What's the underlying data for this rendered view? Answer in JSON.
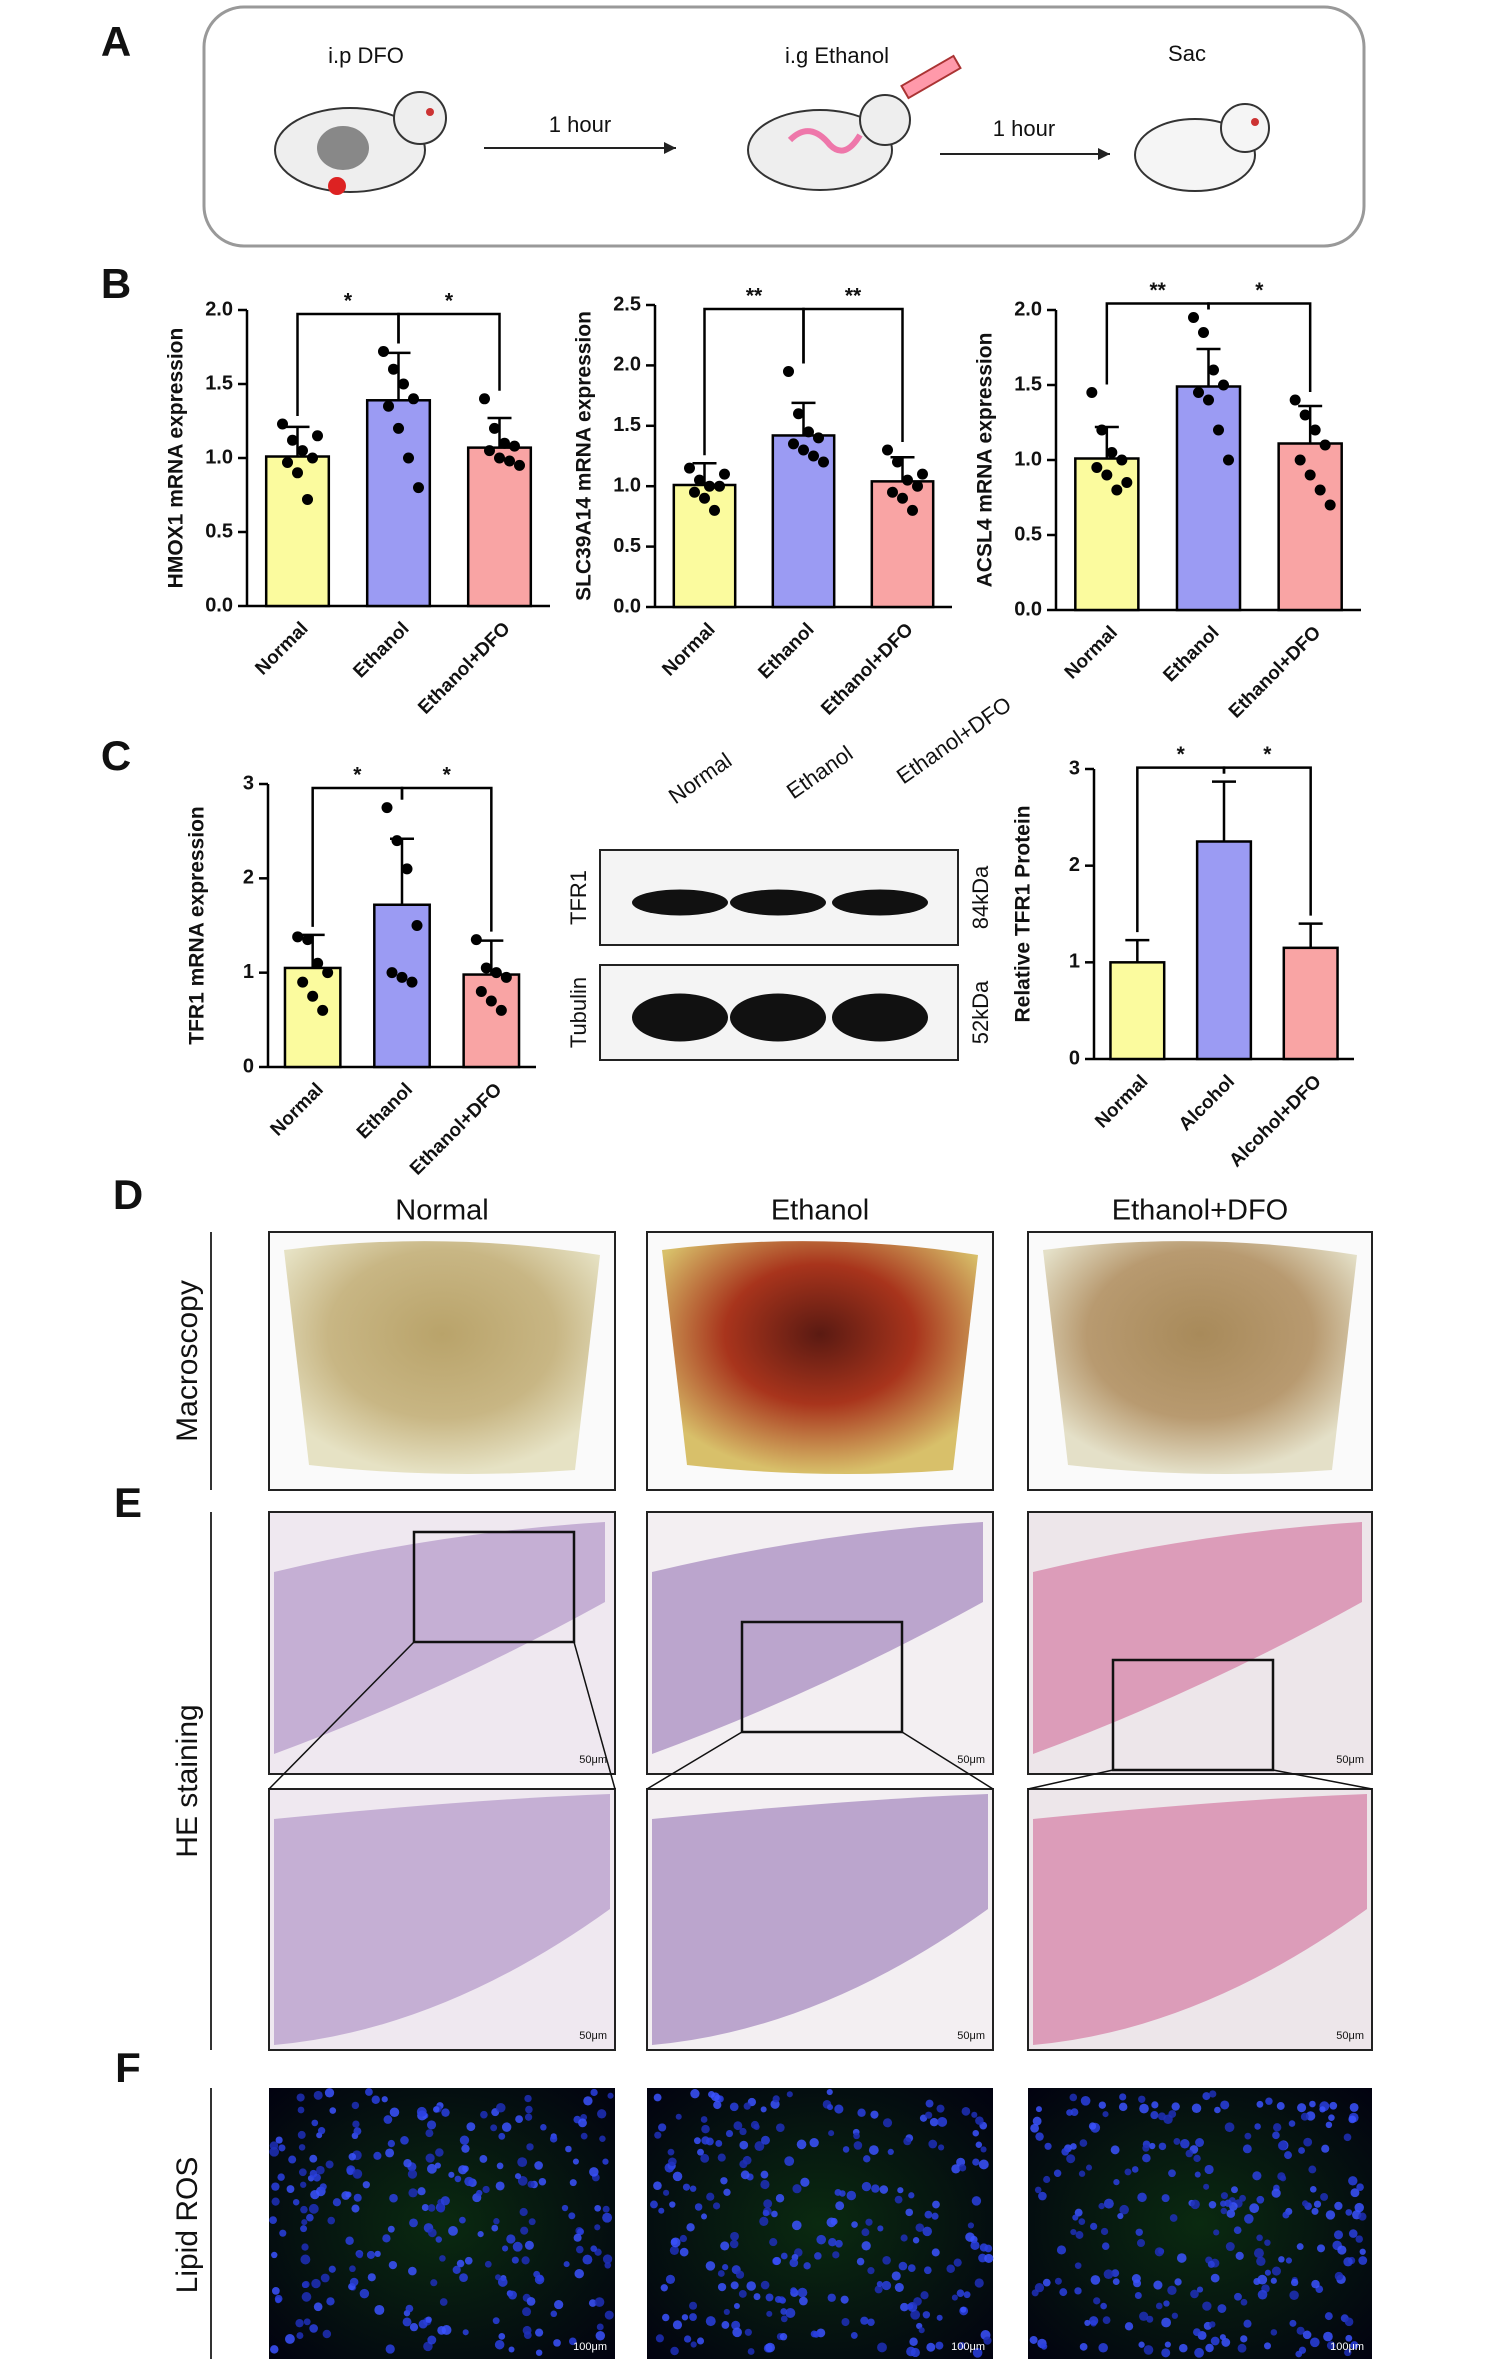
{
  "panel_labels": [
    "A",
    "B",
    "C",
    "D",
    "E",
    "F"
  ],
  "schematic": {
    "steps": [
      "i.p DFO",
      "i.g  Ethanol",
      "Sac"
    ],
    "intervals": [
      "1 hour",
      "1 hour"
    ]
  },
  "blot": {
    "lanes": [
      "Normal",
      "Ethanol",
      "Ethanol+DFO"
    ],
    "bands": [
      {
        "name": "TFR1",
        "size": "84kDa"
      },
      {
        "name": "Tubulin",
        "size": "52kDa"
      }
    ]
  },
  "images": {
    "columns": [
      "Normal",
      "Ethanol",
      "Ethanol+DFO"
    ],
    "rows": [
      "Macroscopy",
      "HE staining",
      "Lipid ROS"
    ],
    "scale_bars": [
      "50μm",
      "100μm"
    ]
  },
  "chart_data": [
    {
      "type": "bar",
      "ylabel": "HMOX1 mRNA expression",
      "categories": [
        "Normal",
        "Ethanol",
        "Ethanol+DFO"
      ],
      "values": [
        1.01,
        1.39,
        1.07
      ],
      "errors": [
        0.2,
        0.32,
        0.2
      ],
      "points": [
        [
          1.23,
          1.12,
          1.05,
          1.0,
          0.97,
          0.9,
          0.72,
          1.15
        ],
        [
          1.72,
          1.6,
          1.5,
          1.4,
          1.35,
          1.2,
          1.0,
          0.8
        ],
        [
          1.4,
          1.2,
          1.1,
          1.08,
          1.05,
          1.0,
          0.98,
          0.95
        ]
      ],
      "colors": [
        "#fbfb9e",
        "#9b9bf3",
        "#f9a4a4"
      ],
      "significance": [
        "*",
        "*"
      ],
      "ylim": [
        0,
        2
      ],
      "yticks": [
        {
          "value": 0,
          "label": "0.0"
        },
        0.5,
        {
          "value": 1,
          "label": "1.0"
        },
        1.5,
        {
          "value": 2,
          "label": "2.0"
        }
      ]
    },
    {
      "type": "bar",
      "ylabel": "SLC39A14 mRNA expression",
      "categories": [
        "Normal",
        "Ethanol",
        "Ethanol+DFO"
      ],
      "values": [
        1.01,
        1.42,
        1.04
      ],
      "errors": [
        0.18,
        0.27,
        0.2
      ],
      "points": [
        [
          1.15,
          1.05,
          1.0,
          1.0,
          0.95,
          0.9,
          0.8,
          1.1
        ],
        [
          1.95,
          1.6,
          1.45,
          1.4,
          1.35,
          1.3,
          1.25,
          1.2
        ],
        [
          1.3,
          1.2,
          1.05,
          1.0,
          0.95,
          0.9,
          0.8,
          1.1
        ]
      ],
      "colors": [
        "#fbfb9e",
        "#9b9bf3",
        "#f9a4a4"
      ],
      "significance": [
        "**",
        "**"
      ],
      "ylim": [
        0,
        2.5
      ],
      "yticks": [
        {
          "value": 0,
          "label": "0.0"
        },
        0.5,
        {
          "value": 1,
          "label": "1.0"
        },
        1.5,
        {
          "value": 2,
          "label": "2.0"
        },
        2.5
      ]
    },
    {
      "type": "bar",
      "ylabel": "ACSL4 mRNA expression",
      "categories": [
        "Normal",
        "Ethanol",
        "Ethanol+DFO"
      ],
      "values": [
        1.01,
        1.49,
        1.11
      ],
      "errors": [
        0.21,
        0.25,
        0.25
      ],
      "points": [
        [
          1.45,
          1.2,
          1.05,
          1.0,
          0.95,
          0.9,
          0.8,
          0.85
        ],
        [
          1.95,
          1.85,
          1.6,
          1.5,
          1.45,
          1.4,
          1.2,
          1.0
        ],
        [
          1.4,
          1.3,
          1.2,
          1.1,
          1.0,
          0.9,
          0.8,
          0.7
        ]
      ],
      "colors": [
        "#fbfb9e",
        "#9b9bf3",
        "#f9a4a4"
      ],
      "significance": [
        "**",
        "*"
      ],
      "ylim": [
        0,
        2
      ],
      "yticks": [
        {
          "value": 0,
          "label": "0.0"
        },
        0.5,
        {
          "value": 1,
          "label": "1.0"
        },
        1.5,
        {
          "value": 2,
          "label": "2.0"
        }
      ]
    },
    {
      "type": "bar",
      "ylabel": "TFR1 mRNA expression",
      "categories": [
        "Normal",
        "Ethanol",
        "Ethanol+DFO"
      ],
      "values": [
        1.05,
        1.72,
        0.98
      ],
      "errors": [
        0.35,
        0.7,
        0.36
      ],
      "points": [
        [
          1.38,
          1.35,
          1.1,
          1.0,
          0.9,
          0.75,
          0.6
        ],
        [
          2.75,
          2.4,
          2.1,
          1.5,
          1.0,
          0.95,
          0.9
        ],
        [
          1.35,
          1.05,
          1.0,
          0.95,
          0.8,
          0.7,
          0.6
        ]
      ],
      "colors": [
        "#fbfb9e",
        "#9b9bf3",
        "#f9a4a4"
      ],
      "significance": [
        "*",
        "*"
      ],
      "ylim": [
        0,
        3
      ],
      "yticks": [
        0,
        1,
        2,
        3
      ]
    },
    {
      "type": "bar",
      "ylabel": "Relative TFR1 Protein",
      "categories": [
        "Normal",
        "Alcohol",
        "Alcohol+DFO"
      ],
      "values": [
        1.0,
        2.25,
        1.15
      ],
      "errors": [
        0.23,
        0.62,
        0.25
      ],
      "colors": [
        "#fbfb9e",
        "#9b9bf3",
        "#f9a4a4"
      ],
      "significance": [
        "*",
        "*"
      ],
      "ylim": [
        0,
        3
      ],
      "yticks": [
        0,
        1,
        2,
        3
      ]
    }
  ]
}
